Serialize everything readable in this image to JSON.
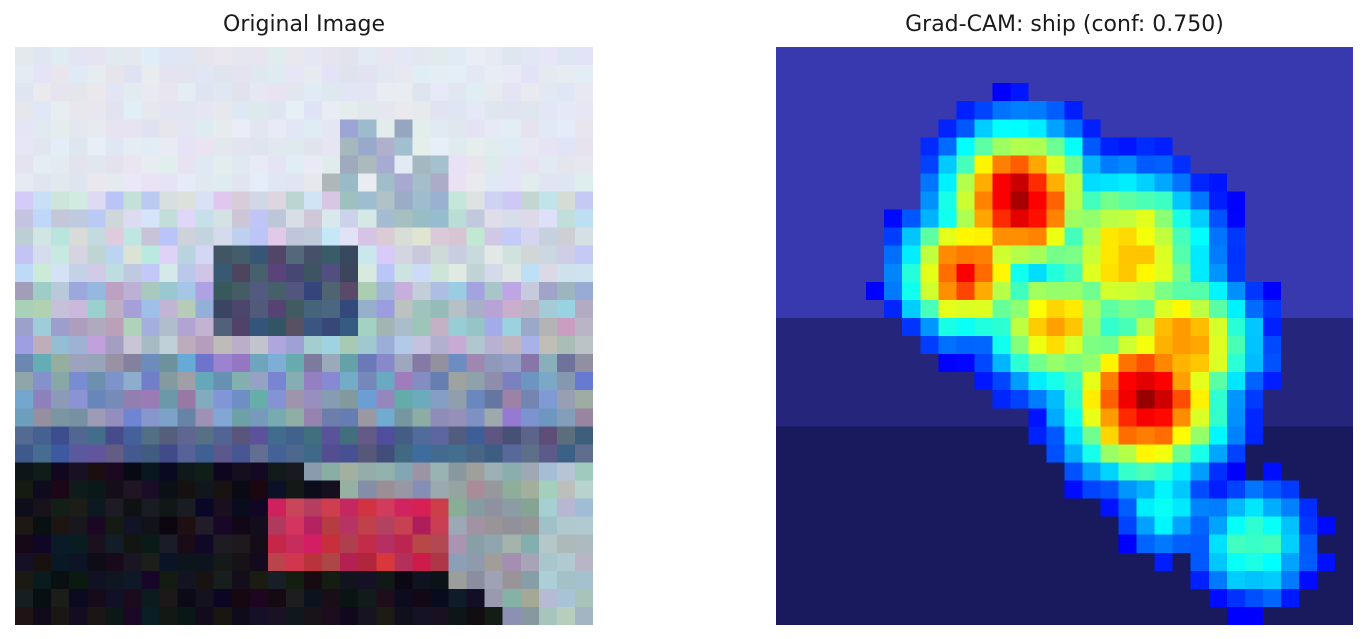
{
  "panels": {
    "left": {
      "title": "Original Image"
    },
    "right": {
      "title": "Grad-CAM: ship (conf: 0.750)"
    }
  },
  "colors": {
    "background": "#ffffff",
    "sky": "#e4e8f2",
    "hull_dark": "#0c0c14",
    "hull_stripe": "#c23048",
    "water": "#9aa6a8",
    "cam_base": "#3a3a9a",
    "cam_hot": "#c8342c"
  }
}
